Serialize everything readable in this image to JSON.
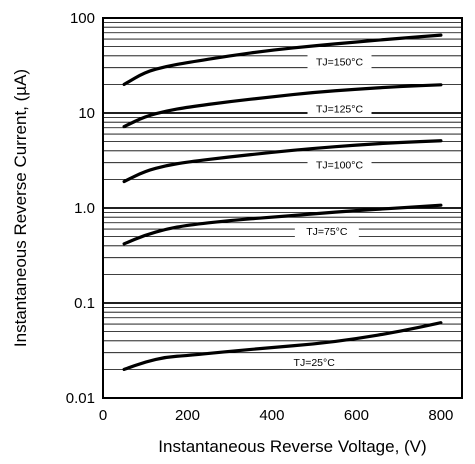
{
  "chart_data": {
    "type": "line",
    "title": "",
    "xlabel": "Instantaneous Reverse Voltage, (V)",
    "ylabel": "Instantaneous Reverse Current, (µA)",
    "xlim": [
      0,
      850
    ],
    "ylim": [
      0.01,
      100
    ],
    "yscale": "log",
    "grid": "horizontal log-decade gridlines",
    "x_ticks": [
      0,
      200,
      400,
      600,
      800
    ],
    "x_tick_labels": [
      "0",
      "200",
      "400",
      "600",
      "800"
    ],
    "y_ticks": [
      0.01,
      0.1,
      1,
      10,
      100
    ],
    "y_tick_labels": [
      "0.01",
      "0.1",
      "1.0",
      "10",
      "100"
    ],
    "series": [
      {
        "name": "TJ=150°C",
        "label_x": 560,
        "x": [
          50,
          100,
          150,
          200,
          300,
          400,
          500,
          600,
          700,
          800
        ],
        "y": [
          20,
          27,
          31,
          34,
          40,
          46,
          51,
          56,
          61,
          66
        ]
      },
      {
        "name": "TJ=125°C",
        "label_x": 560,
        "x": [
          50,
          100,
          150,
          200,
          300,
          400,
          500,
          600,
          700,
          800
        ],
        "y": [
          7.2,
          9.2,
          10.5,
          11.5,
          13.2,
          14.8,
          16.5,
          17.8,
          19,
          19.8
        ]
      },
      {
        "name": "TJ=100°C",
        "label_x": 560,
        "x": [
          50,
          100,
          150,
          200,
          300,
          400,
          500,
          600,
          700,
          800
        ],
        "y": [
          1.9,
          2.45,
          2.8,
          3.05,
          3.45,
          3.85,
          4.25,
          4.6,
          4.9,
          5.1
        ]
      },
      {
        "name": "TJ=75°C",
        "label_x": 530,
        "x": [
          50,
          100,
          150,
          200,
          300,
          400,
          500,
          600,
          700,
          800
        ],
        "y": [
          0.42,
          0.52,
          0.6,
          0.66,
          0.74,
          0.8,
          0.87,
          0.94,
          1.0,
          1.07
        ]
      },
      {
        "name": "TJ=25°C",
        "label_x": 500,
        "x": [
          50,
          100,
          150,
          200,
          300,
          400,
          500,
          600,
          700,
          800
        ],
        "y": [
          0.02,
          0.024,
          0.027,
          0.028,
          0.031,
          0.034,
          0.037,
          0.042,
          0.05,
          0.062
        ]
      }
    ]
  }
}
